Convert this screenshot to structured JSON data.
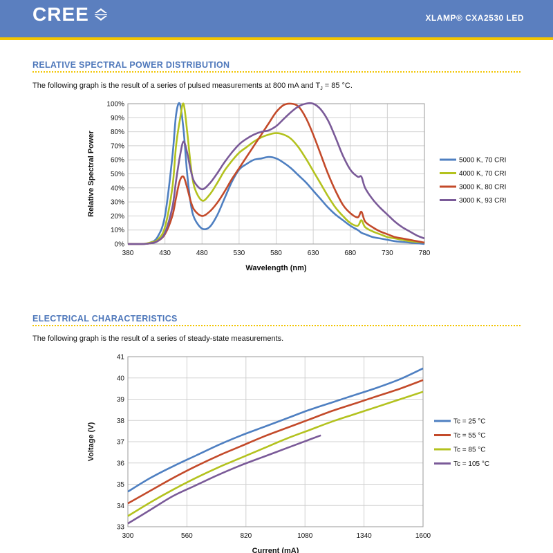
{
  "header": {
    "brand": "CREE",
    "product": "XLAMP® CXA2530 LED",
    "bar_color": "#5b7fbf",
    "accent_color": "#f2c500"
  },
  "sections": [
    {
      "title": "RELATIVE SPECTRAL POWER DISTRIBUTION",
      "paragraph": "The following graph is the result of a series of pulsed measurements at 800 mA and T",
      "paragraph_sub": "J",
      "paragraph_tail": " = 85 °C."
    },
    {
      "title": "ELECTRICAL CHARACTERISTICS",
      "paragraph": "The following graph is the result of a series of steady-state measurements."
    }
  ],
  "chart_data": [
    {
      "type": "line",
      "title": "",
      "xlabel": "Wavelength (nm)",
      "ylabel": "Relative Spectral Power",
      "xlim": [
        380,
        780
      ],
      "ylim": [
        0,
        100
      ],
      "x_ticks": [
        380,
        430,
        480,
        530,
        580,
        630,
        680,
        730,
        780
      ],
      "y_ticks": [
        "0%",
        "10%",
        "20%",
        "30%",
        "40%",
        "50%",
        "60%",
        "70%",
        "80%",
        "90%",
        "100%"
      ],
      "grid": true,
      "legend": "right",
      "x": [
        380,
        400,
        410,
        420,
        430,
        440,
        445,
        450,
        455,
        460,
        465,
        470,
        480,
        490,
        500,
        510,
        520,
        530,
        540,
        550,
        560,
        570,
        580,
        590,
        600,
        610,
        620,
        630,
        640,
        650,
        660,
        670,
        680,
        690,
        695,
        700,
        710,
        720,
        730,
        740,
        750,
        760,
        770,
        780
      ],
      "series": [
        {
          "name": "5000 K, 70 CRI",
          "color": "#4e7fc1",
          "values": [
            0,
            0,
            1,
            5,
            20,
            62,
            92,
            100,
            82,
            50,
            28,
            18,
            11,
            12,
            20,
            32,
            44,
            53,
            57,
            60,
            61,
            62,
            61,
            58,
            54,
            49,
            44,
            38,
            32,
            26,
            21,
            17,
            13,
            10,
            8,
            7,
            5,
            4,
            3,
            2,
            1.5,
            1,
            0.5,
            0
          ]
        },
        {
          "name": "4000 K, 70 CRI",
          "color": "#b3c21e",
          "values": [
            0,
            0,
            1,
            3,
            12,
            40,
            70,
            88,
            100,
            80,
            55,
            40,
            31,
            35,
            43,
            52,
            59,
            65,
            69,
            73,
            76,
            78,
            79,
            78,
            75,
            69,
            61,
            52,
            43,
            34,
            26,
            20,
            15,
            13,
            17,
            12,
            9,
            7,
            5,
            4,
            3,
            2,
            1.5,
            1
          ]
        },
        {
          "name": "3000 K, 80 CRI",
          "color": "#c34a2a",
          "values": [
            0,
            0,
            0.5,
            2,
            7,
            20,
            33,
            45,
            48,
            40,
            30,
            24,
            20,
            23,
            29,
            37,
            46,
            54,
            62,
            70,
            78,
            86,
            94,
            99,
            100,
            98,
            90,
            78,
            64,
            50,
            38,
            28,
            22,
            19,
            23,
            16,
            12,
            9,
            7,
            5,
            4,
            3,
            2,
            1
          ]
        },
        {
          "name": "3000 K, 93 CRI",
          "color": "#7a5a98",
          "values": [
            0,
            0,
            0.5,
            2,
            8,
            26,
            45,
            62,
            73,
            65,
            52,
            44,
            39,
            43,
            50,
            58,
            65,
            71,
            75,
            78,
            80,
            81,
            84,
            89,
            94,
            98,
            100,
            100,
            96,
            88,
            76,
            63,
            53,
            48,
            48,
            40,
            32,
            26,
            21,
            16,
            12,
            9,
            6,
            4
          ]
        }
      ]
    },
    {
      "type": "line",
      "title": "",
      "xlabel": "Current (mA)",
      "ylabel": "Voltage (V)",
      "xlim": [
        300,
        1600
      ],
      "ylim": [
        33,
        41
      ],
      "x_ticks": [
        300,
        560,
        820,
        1080,
        1340,
        1600
      ],
      "y_ticks": [
        "33",
        "34",
        "35",
        "36",
        "37",
        "38",
        "39",
        "40",
        "41"
      ],
      "grid": true,
      "legend": "right",
      "series": [
        {
          "name": "Tc = 25 °C",
          "color": "#4e7fc1",
          "x": [
            300,
            400,
            500,
            600,
            700,
            800,
            900,
            1000,
            1100,
            1200,
            1300,
            1400,
            1500,
            1600
          ],
          "values": [
            34.65,
            35.3,
            35.85,
            36.35,
            36.85,
            37.3,
            37.7,
            38.1,
            38.5,
            38.85,
            39.2,
            39.55,
            39.95,
            40.45
          ]
        },
        {
          "name": "Tc = 55 °C",
          "color": "#c34a2a",
          "x": [
            300,
            400,
            500,
            600,
            700,
            800,
            900,
            1000,
            1100,
            1200,
            1300,
            1400,
            1500,
            1600
          ],
          "values": [
            34.1,
            34.7,
            35.3,
            35.85,
            36.35,
            36.8,
            37.25,
            37.65,
            38.05,
            38.45,
            38.8,
            39.15,
            39.5,
            39.9
          ]
        },
        {
          "name": "Tc = 85 °C",
          "color": "#b3c21e",
          "x": [
            300,
            400,
            500,
            600,
            700,
            800,
            900,
            1000,
            1100,
            1200,
            1300,
            1400,
            1500,
            1600
          ],
          "values": [
            33.5,
            34.15,
            34.75,
            35.3,
            35.8,
            36.25,
            36.7,
            37.15,
            37.55,
            37.95,
            38.3,
            38.65,
            39.0,
            39.35
          ]
        },
        {
          "name": "Tc = 105 °C",
          "color": "#7a5a98",
          "x": [
            300,
            400,
            500,
            600,
            700,
            800,
            900,
            1000,
            1100,
            1150
          ],
          "values": [
            33.15,
            33.8,
            34.45,
            34.95,
            35.45,
            35.9,
            36.3,
            36.7,
            37.1,
            37.3
          ]
        }
      ]
    }
  ]
}
